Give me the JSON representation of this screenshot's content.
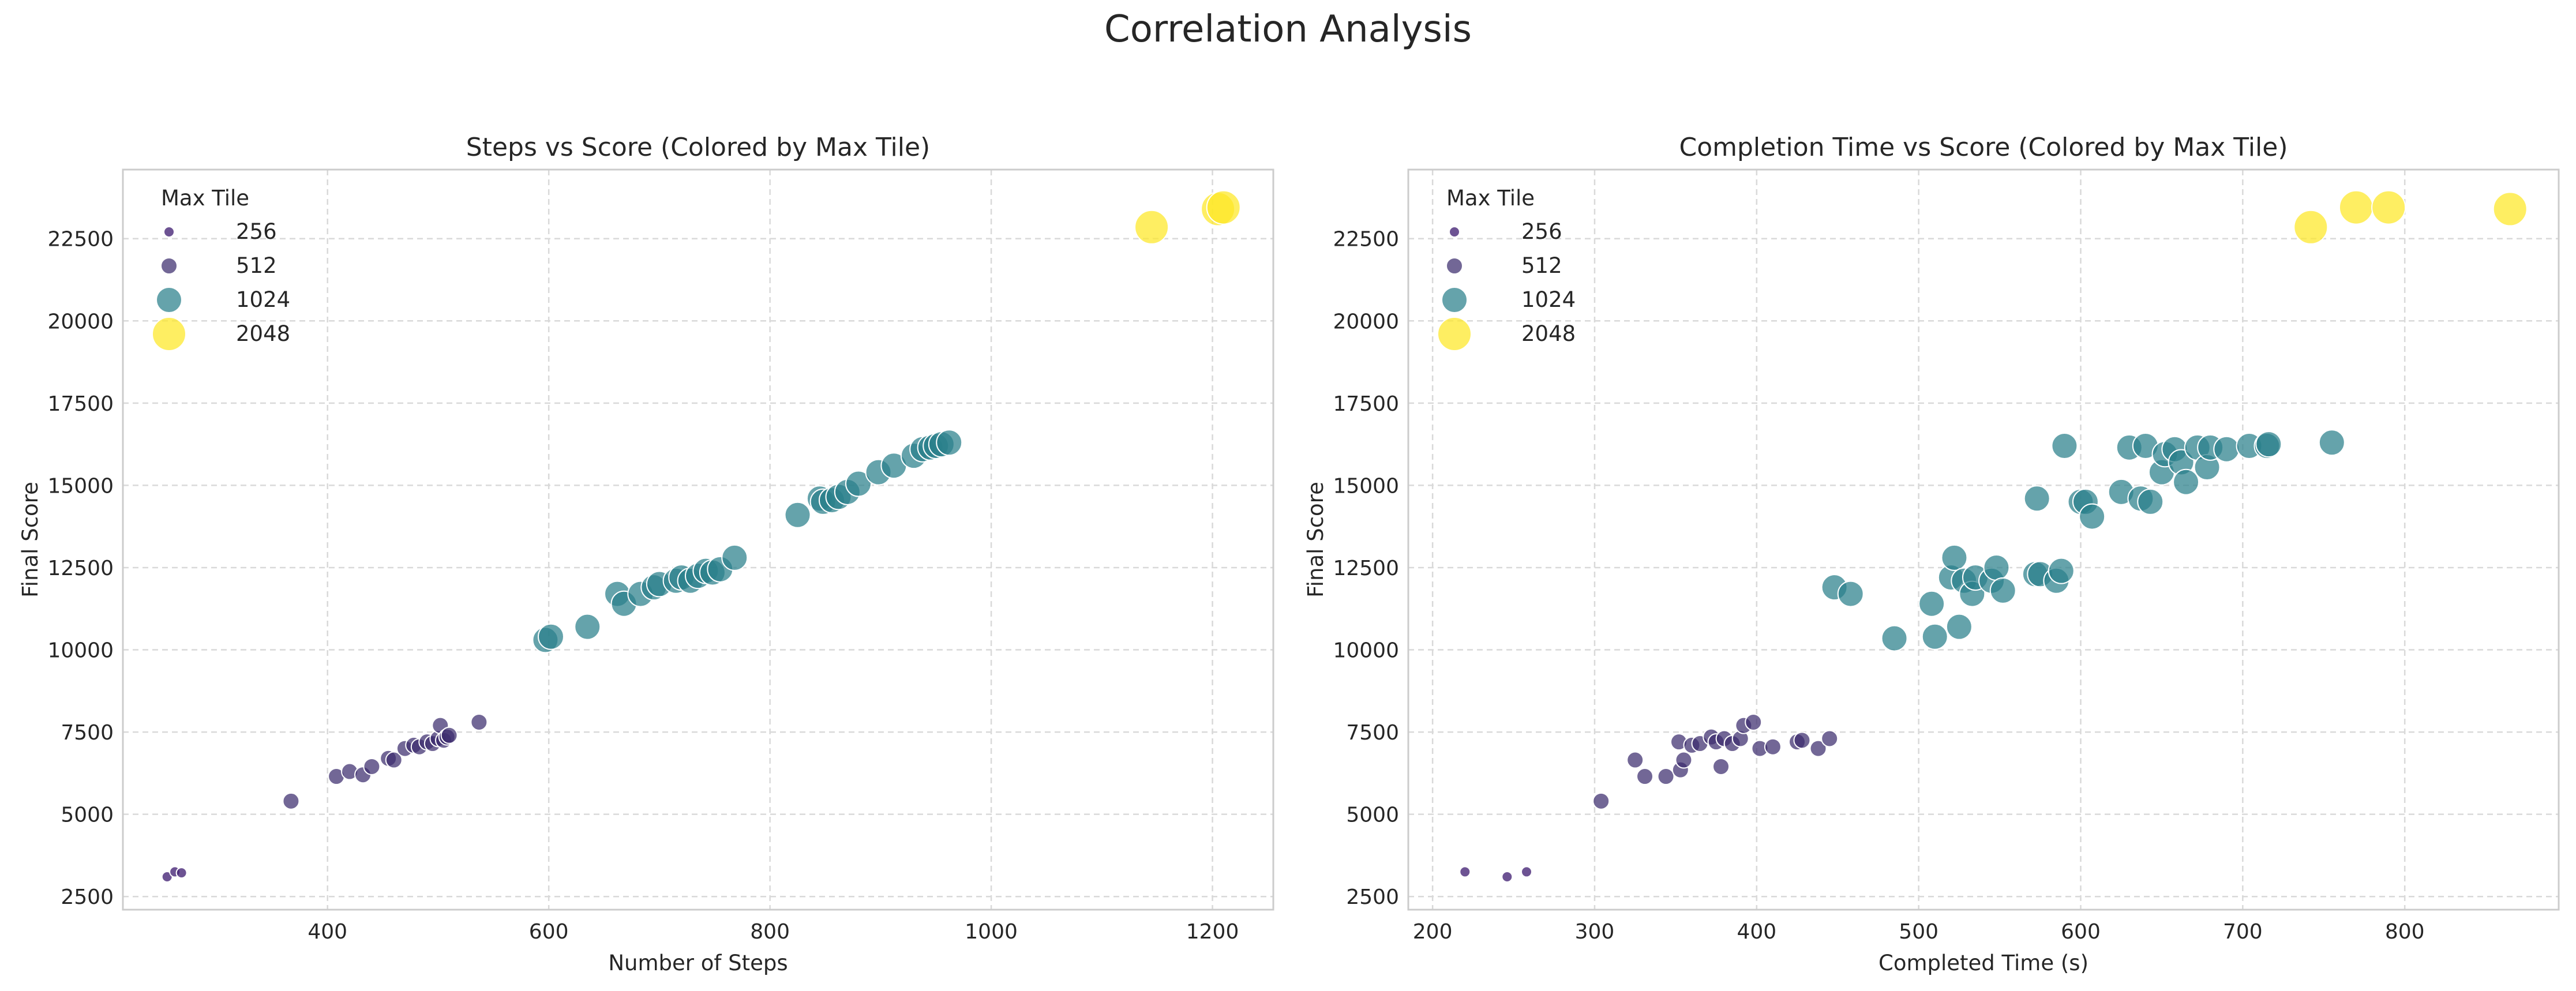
{
  "figure_title": "Correlation Analysis",
  "chart_data": [
    {
      "type": "scatter",
      "title": "Steps vs Score (Colored by Max Tile)",
      "xlabel": "Number of Steps",
      "ylabel": "Final Score",
      "xlim": [
        215,
        1255
      ],
      "ylim": [
        2100,
        24600
      ],
      "xticks": [
        400,
        600,
        800,
        1000,
        1200
      ],
      "yticks": [
        2500,
        5000,
        7500,
        10000,
        12500,
        15000,
        17500,
        20000,
        22500
      ],
      "grid": true,
      "legend": {
        "title": "Max Tile",
        "placement": "top-left",
        "entries": [
          {
            "label": "256",
            "color": "#482878"
          },
          {
            "label": "512",
            "color": "#3b2d6e"
          },
          {
            "label": "1024",
            "color": "#2a7f8a"
          },
          {
            "label": "2048",
            "color": "#fde725"
          }
        ]
      },
      "series": [
        {
          "name": "256",
          "color": "#482878",
          "points": [
            [
              255,
              3100
            ],
            [
              262,
              3250
            ],
            [
              268,
              3220
            ]
          ]
        },
        {
          "name": "512",
          "color": "#3b2d6e",
          "points": [
            [
              367,
              5400
            ],
            [
              408,
              6150
            ],
            [
              420,
              6300
            ],
            [
              432,
              6200
            ],
            [
              440,
              6450
            ],
            [
              455,
              6700
            ],
            [
              460,
              6650
            ],
            [
              470,
              7000
            ],
            [
              478,
              7100
            ],
            [
              483,
              7050
            ],
            [
              490,
              7200
            ],
            [
              495,
              7150
            ],
            [
              500,
              7300
            ],
            [
              502,
              7700
            ],
            [
              505,
              7250
            ],
            [
              508,
              7350
            ],
            [
              510,
              7400
            ],
            [
              537,
              7800
            ]
          ]
        },
        {
          "name": "1024",
          "color": "#2a7f8a",
          "points": [
            [
              597,
              10300
            ],
            [
              602,
              10400
            ],
            [
              635,
              10700
            ],
            [
              662,
              11700
            ],
            [
              668,
              11400
            ],
            [
              683,
              11700
            ],
            [
              695,
              11900
            ],
            [
              700,
              12000
            ],
            [
              715,
              12100
            ],
            [
              720,
              12200
            ],
            [
              728,
              12100
            ],
            [
              735,
              12250
            ],
            [
              742,
              12400
            ],
            [
              748,
              12350
            ],
            [
              755,
              12450
            ],
            [
              768,
              12800
            ],
            [
              825,
              14100
            ],
            [
              845,
              14600
            ],
            [
              848,
              14500
            ],
            [
              856,
              14550
            ],
            [
              862,
              14650
            ],
            [
              870,
              14800
            ],
            [
              880,
              15050
            ],
            [
              898,
              15400
            ],
            [
              912,
              15600
            ],
            [
              930,
              15900
            ],
            [
              938,
              16100
            ],
            [
              945,
              16150
            ],
            [
              950,
              16200
            ],
            [
              955,
              16250
            ],
            [
              962,
              16300
            ]
          ]
        },
        {
          "name": "2048",
          "color": "#fde725",
          "points": [
            [
              1145,
              22850
            ],
            [
              1205,
              23400
            ],
            [
              1210,
              23450
            ]
          ]
        }
      ]
    },
    {
      "type": "scatter",
      "title": "Completion Time vs Score (Colored by Max Tile)",
      "xlabel": "Completed Time (s)",
      "ylabel": "Final Score",
      "xlim": [
        185,
        895
      ],
      "ylim": [
        2100,
        24600
      ],
      "xticks": [
        200,
        300,
        400,
        500,
        600,
        700,
        800
      ],
      "yticks": [
        2500,
        5000,
        7500,
        10000,
        12500,
        15000,
        17500,
        20000,
        22500
      ],
      "grid": true,
      "legend": {
        "title": "Max Tile",
        "placement": "top-left",
        "entries": [
          {
            "label": "256",
            "color": "#482878"
          },
          {
            "label": "512",
            "color": "#3b2d6e"
          },
          {
            "label": "1024",
            "color": "#2a7f8a"
          },
          {
            "label": "2048",
            "color": "#fde725"
          }
        ]
      },
      "series": [
        {
          "name": "256",
          "color": "#482878",
          "points": [
            [
              220,
              3250
            ],
            [
              246,
              3100
            ],
            [
              258,
              3250
            ]
          ]
        },
        {
          "name": "512",
          "color": "#3b2d6e",
          "points": [
            [
              304,
              5400
            ],
            [
              325,
              6650
            ],
            [
              331,
              6150
            ],
            [
              344,
              6150
            ],
            [
              352,
              7200
            ],
            [
              353,
              6350
            ],
            [
              355,
              6650
            ],
            [
              360,
              7100
            ],
            [
              365,
              7150
            ],
            [
              372,
              7350
            ],
            [
              375,
              7200
            ],
            [
              378,
              6450
            ],
            [
              380,
              7300
            ],
            [
              385,
              7150
            ],
            [
              390,
              7300
            ],
            [
              392,
              7700
            ],
            [
              398,
              7800
            ],
            [
              402,
              7000
            ],
            [
              410,
              7050
            ],
            [
              425,
              7200
            ],
            [
              428,
              7250
            ],
            [
              438,
              7000
            ],
            [
              445,
              7300
            ]
          ]
        },
        {
          "name": "1024",
          "color": "#2a7f8a",
          "points": [
            [
              448,
              11900
            ],
            [
              458,
              11700
            ],
            [
              485,
              10350
            ],
            [
              508,
              11400
            ],
            [
              510,
              10400
            ],
            [
              520,
              12200
            ],
            [
              522,
              12800
            ],
            [
              525,
              10700
            ],
            [
              528,
              12100
            ],
            [
              533,
              11700
            ],
            [
              535,
              12200
            ],
            [
              545,
              12100
            ],
            [
              548,
              12500
            ],
            [
              552,
              11800
            ],
            [
              572,
              12300
            ],
            [
              573,
              14600
            ],
            [
              575,
              12300
            ],
            [
              585,
              12100
            ],
            [
              588,
              12400
            ],
            [
              590,
              16200
            ],
            [
              600,
              14500
            ],
            [
              603,
              14500
            ],
            [
              607,
              14050
            ],
            [
              625,
              14800
            ],
            [
              630,
              16150
            ],
            [
              637,
              14600
            ],
            [
              640,
              16200
            ],
            [
              643,
              14500
            ],
            [
              650,
              15400
            ],
            [
              652,
              15950
            ],
            [
              658,
              16100
            ],
            [
              662,
              15700
            ],
            [
              665,
              15100
            ],
            [
              672,
              16150
            ],
            [
              678,
              15550
            ],
            [
              680,
              16150
            ],
            [
              690,
              16100
            ],
            [
              704,
              16200
            ],
            [
              715,
              16200
            ],
            [
              716,
              16250
            ],
            [
              755,
              16300
            ]
          ]
        },
        {
          "name": "2048",
          "color": "#fde725",
          "points": [
            [
              742,
              22850
            ],
            [
              770,
              23450
            ],
            [
              790,
              23450
            ],
            [
              865,
              23400
            ]
          ]
        }
      ]
    }
  ]
}
